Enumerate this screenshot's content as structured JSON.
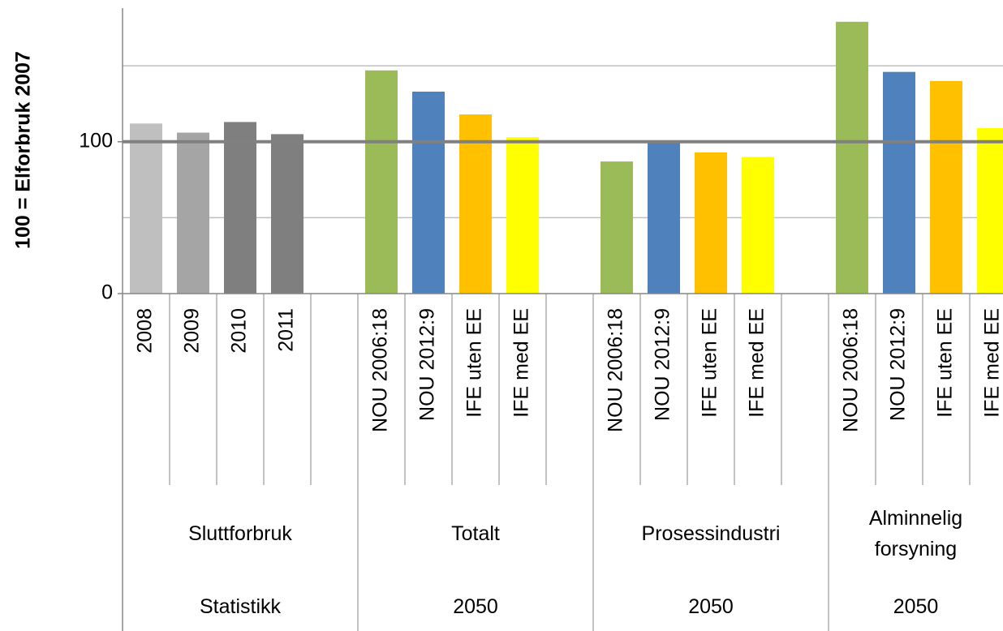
{
  "chart_data": {
    "type": "bar",
    "y_axis_label": "100 = Elforbruk 2007",
    "ylim": [
      0,
      188
    ],
    "yticks": [
      0,
      100
    ],
    "ygrid": [
      50,
      150
    ],
    "reference_line": 100,
    "groups": [
      {
        "name": "Sluttforbruk",
        "sub": "Statistikk",
        "categories": [
          "2008",
          "2009",
          "2010",
          "2011"
        ],
        "values": [
          112,
          106,
          113,
          105
        ],
        "colors": [
          "#bfbfbf",
          "#a5a5a5",
          "#7f7f7f",
          "#7f7f7f"
        ]
      },
      {
        "name": "Totalt",
        "sub": "2050",
        "categories": [
          "NOU 2006:18",
          "NOU 2012:9",
          "IFE uten EE",
          "IFE med EE"
        ],
        "values": [
          147,
          133,
          118,
          103
        ],
        "colors": [
          "#9bbb59",
          "#4f81bd",
          "#ffc000",
          "#ffff00"
        ]
      },
      {
        "name": "Prosessindustri",
        "sub": "2050",
        "categories": [
          "NOU 2006:18",
          "NOU 2012:9",
          "IFE uten EE",
          "IFE med EE"
        ],
        "values": [
          87,
          100,
          93,
          90
        ],
        "colors": [
          "#9bbb59",
          "#4f81bd",
          "#ffc000",
          "#ffff00"
        ]
      },
      {
        "name": "Alminnelig forsyning",
        "sub": "2050",
        "categories": [
          "NOU 2006:18",
          "NOU 2012:9",
          "IFE uten EE",
          "IFE med EE"
        ],
        "values": [
          179,
          146,
          140,
          109
        ],
        "colors": [
          "#9bbb59",
          "#4f81bd",
          "#ffc000",
          "#ffff00"
        ]
      }
    ]
  }
}
